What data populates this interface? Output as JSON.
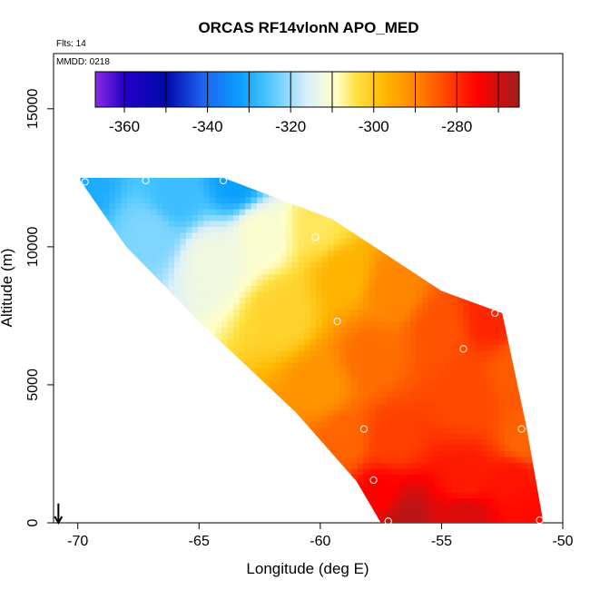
{
  "chart_data": {
    "type": "heatmap",
    "title": "ORCAS RF14vlonN APO_MED",
    "xlabel": "Longitude (deg E)",
    "ylabel": "Altitude (m)",
    "xlim": [
      -71,
      -50
    ],
    "ylim": [
      0,
      17000
    ],
    "x_ticks": [
      -70,
      -65,
      -60,
      -55,
      -50
    ],
    "y_ticks": [
      0,
      5000,
      10000,
      15000
    ],
    "x_tick_labels": [
      "-70",
      "-65",
      "-60",
      "-55",
      "-50"
    ],
    "y_tick_labels": [
      "0",
      "5000",
      "10000",
      "15000"
    ],
    "flights_note": "Flts: 14",
    "date_note": "MMDD: 0218",
    "colorbar": {
      "min": -367,
      "max": -265,
      "ticks": [
        -360,
        -340,
        -320,
        -300,
        -280
      ],
      "tick_labels": [
        "-360",
        "-340",
        "-320",
        "-300",
        "-280"
      ],
      "stops": [
        {
          "value": -367,
          "color": "#8a2be2"
        },
        {
          "value": -360,
          "color": "#2400c8"
        },
        {
          "value": -350,
          "color": "#0008aa"
        },
        {
          "value": -341,
          "color": "#1e64f0"
        },
        {
          "value": -332,
          "color": "#0aa0ff"
        },
        {
          "value": -325,
          "color": "#50c8ff"
        },
        {
          "value": -316,
          "color": "#dceffc"
        },
        {
          "value": -309,
          "color": "#ffffc8"
        },
        {
          "value": -304,
          "color": "#ffe040"
        },
        {
          "value": -297,
          "color": "#ffb400"
        },
        {
          "value": -289,
          "color": "#ff8000"
        },
        {
          "value": -282,
          "color": "#ff4000"
        },
        {
          "value": -275,
          "color": "#ff0000"
        },
        {
          "value": -265,
          "color": "#a01e1e"
        }
      ],
      "band_edges": [
        -360,
        -350,
        -340,
        -330,
        -320,
        -310,
        -300,
        -290,
        -280,
        -270
      ]
    },
    "domain_outline": [
      [
        -69.9,
        12500
      ],
      [
        -64,
        12500
      ],
      [
        -59.5,
        11000
      ],
      [
        -55,
        8400
      ],
      [
        -52.5,
        7600
      ],
      [
        -51.5,
        3500
      ],
      [
        -50.8,
        0
      ],
      [
        -57.5,
        0
      ],
      [
        -58.5,
        1500
      ],
      [
        -61,
        4000
      ],
      [
        -65,
        7300
      ],
      [
        -68,
        10000
      ],
      [
        -69.9,
        12400
      ]
    ],
    "field_anchors": [
      {
        "lon": -69.8,
        "alt": 12300,
        "value": -330
      },
      {
        "lon": -66.0,
        "alt": 11800,
        "value": -327
      },
      {
        "lon": -63.5,
        "alt": 12300,
        "value": -332
      },
      {
        "lon": -67.0,
        "alt": 10500,
        "value": -322
      },
      {
        "lon": -64.5,
        "alt": 9500,
        "value": -312
      },
      {
        "lon": -62.5,
        "alt": 10500,
        "value": -310
      },
      {
        "lon": -60.0,
        "alt": 10800,
        "value": -305
      },
      {
        "lon": -61.5,
        "alt": 7500,
        "value": -302
      },
      {
        "lon": -59.0,
        "alt": 9000,
        "value": -297
      },
      {
        "lon": -57.0,
        "alt": 8500,
        "value": -290
      },
      {
        "lon": -60.0,
        "alt": 5000,
        "value": -292
      },
      {
        "lon": -58.0,
        "alt": 6000,
        "value": -287
      },
      {
        "lon": -55.0,
        "alt": 7000,
        "value": -284
      },
      {
        "lon": -53.0,
        "alt": 7400,
        "value": -279
      },
      {
        "lon": -52.0,
        "alt": 5500,
        "value": -285
      },
      {
        "lon": -54.0,
        "alt": 4500,
        "value": -283
      },
      {
        "lon": -51.6,
        "alt": 3000,
        "value": -286
      },
      {
        "lon": -57.0,
        "alt": 3000,
        "value": -282
      },
      {
        "lon": -59.0,
        "alt": 3000,
        "value": -286
      },
      {
        "lon": -57.5,
        "alt": 1000,
        "value": -275
      },
      {
        "lon": -54.0,
        "alt": 1500,
        "value": -278
      },
      {
        "lon": -52.0,
        "alt": 1500,
        "value": -277
      },
      {
        "lon": -56.5,
        "alt": 200,
        "value": -268
      },
      {
        "lon": -54.0,
        "alt": 200,
        "value": -271
      },
      {
        "lon": -51.2,
        "alt": 300,
        "value": -276
      }
    ],
    "sample_points": [
      {
        "lon": -69.7,
        "alt": 12350
      },
      {
        "lon": -67.2,
        "alt": 12400
      },
      {
        "lon": -64.0,
        "alt": 12400
      },
      {
        "lon": -60.2,
        "alt": 10350
      },
      {
        "lon": -59.3,
        "alt": 7300
      },
      {
        "lon": -52.8,
        "alt": 7600
      },
      {
        "lon": -54.1,
        "alt": 6300
      },
      {
        "lon": -58.2,
        "alt": 3400
      },
      {
        "lon": -51.7,
        "alt": 3400
      },
      {
        "lon": -57.8,
        "alt": 1550
      },
      {
        "lon": -57.2,
        "alt": 60
      },
      {
        "lon": -50.95,
        "alt": 100
      }
    ],
    "arrow_marker": {
      "lon": -70.8,
      "from_alt": 700,
      "to_alt": 0
    }
  }
}
